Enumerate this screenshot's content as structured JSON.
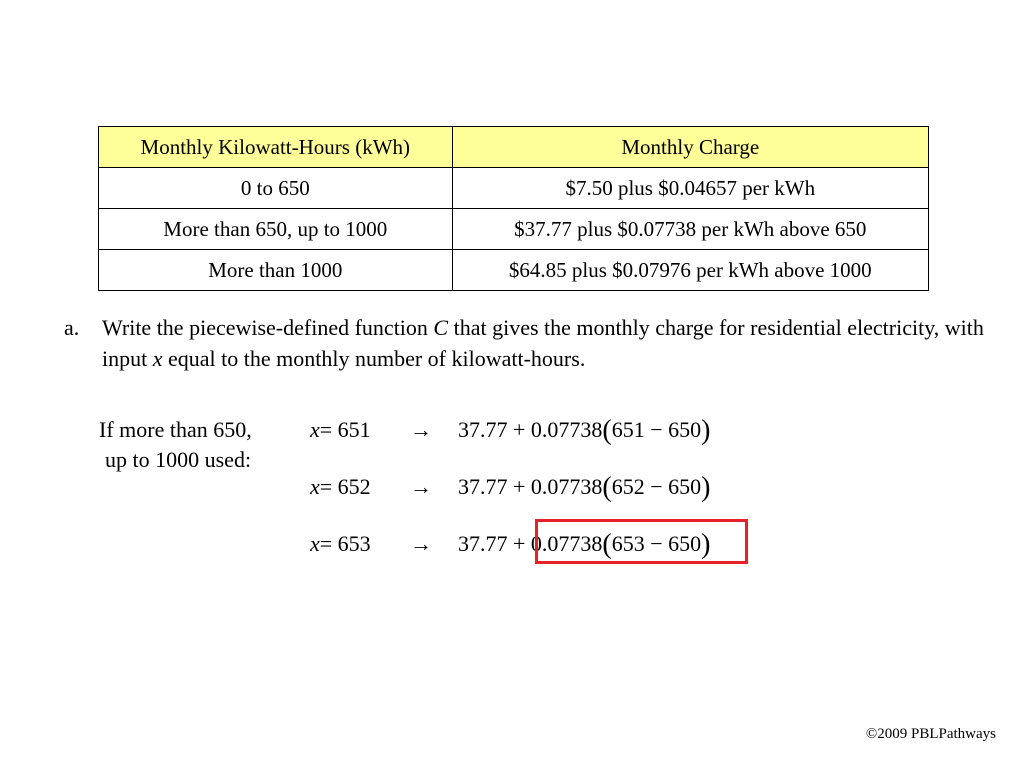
{
  "table": {
    "headers": [
      "Monthly Kilowatt-Hours (kWh)",
      "Monthly Charge"
    ],
    "rows": [
      [
        "0 to 650",
        "$7.50 plus $0.04657 per kWh"
      ],
      [
        "More than 650, up to 1000",
        "$37.77 plus $0.07738 per kWh above 650"
      ],
      [
        "More than 1000",
        "$64.85 plus $0.07976 per kWh above 1000"
      ]
    ]
  },
  "question": {
    "marker": "a.",
    "part1": "Write the piecewise-defined function ",
    "var_c": "C",
    "part2": " that gives the monthly charge for residential electricity, with input ",
    "var_x": "x",
    "part3": " equal to the monthly number of kilowatt-hours."
  },
  "condition": {
    "line1": "If more than 650,",
    "line2": "up to 1000 used:"
  },
  "equations": [
    {
      "var": "x",
      "lhs": " = 651",
      "arrow": "→",
      "expr": "37.77 + 0.07738",
      "inner": "651 − 650"
    },
    {
      "var": "x",
      "lhs": " = 652",
      "arrow": "→",
      "expr": "37.77 + 0.07738",
      "inner": "652 − 650"
    },
    {
      "var": "x",
      "lhs": " = 653",
      "arrow": "→",
      "expr": "37.77 + 0.07738",
      "inner": "653 − 650"
    }
  ],
  "highlight": {
    "color": "#e8202a"
  },
  "footer": {
    "copyright": "©2009 PBLPathways"
  }
}
